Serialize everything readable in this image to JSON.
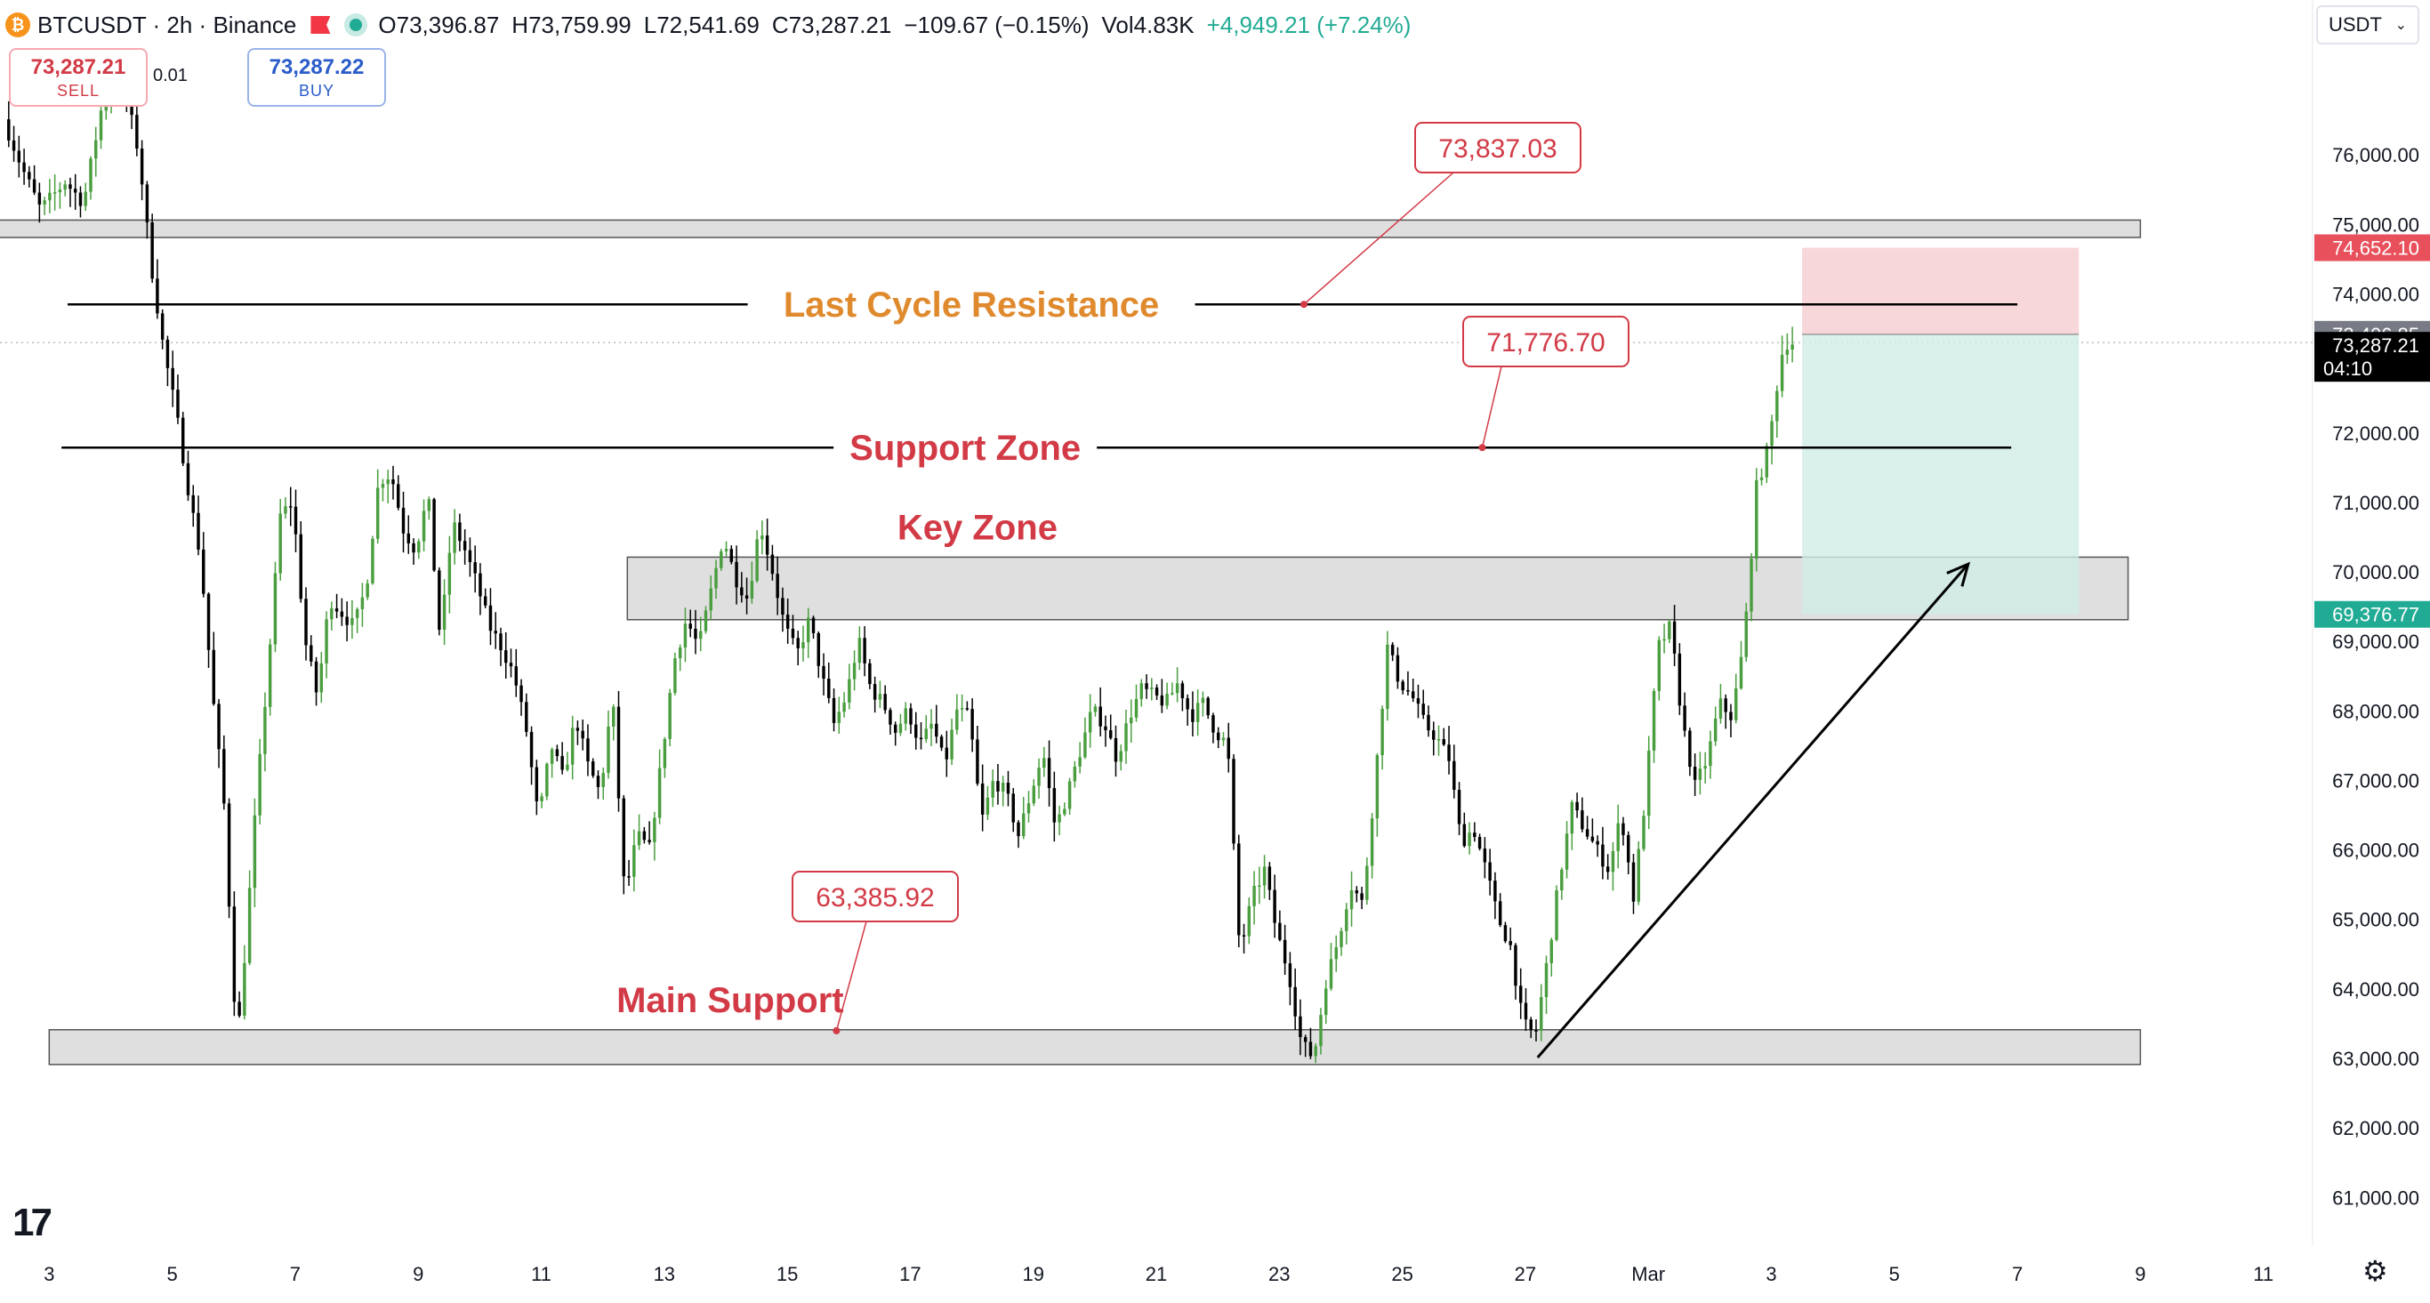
{
  "header": {
    "symbol": "BTCUSDT · 2h · Binance",
    "coin_icon": "bitcoin-icon",
    "open": "O73,396.87",
    "high": "H73,759.99",
    "low": "L72,541.69",
    "close": "C73,287.21",
    "change": "−109.67 (−0.15%)",
    "volume": "Vol4.83K",
    "vol_change": "+4,949.21 (+7.24%)"
  },
  "trade": {
    "sell_price": "73,287.21",
    "sell_label": "SELL",
    "spread": "0.01",
    "buy_price": "73,287.22",
    "buy_label": "BUY"
  },
  "currency": "USDT",
  "colors": {
    "up": "#4a9e3f",
    "down": "#000000",
    "zone_fill": "#d9d9d9",
    "label_red": "#d23a46",
    "label_orange": "#e08a2e",
    "stop_fill": "#f7d3d6",
    "target_fill": "#cfece6",
    "stop_label": "#e8505c",
    "target_label": "#22ab94"
  },
  "chart_data": {
    "type": "candlestick",
    "y_axis": {
      "min": 60300,
      "max": 77500,
      "ticks": [
        76000,
        75000,
        74000,
        73000,
        72000,
        71000,
        70000,
        69000,
        68000,
        67000,
        66000,
        65000,
        64000,
        63000,
        62000,
        61000
      ],
      "tick_labels": [
        "76,000.00",
        "75,000.00",
        "74,000.00",
        "73,000.00",
        "72,000.00",
        "71,000.00",
        "70,000.00",
        "69,000.00",
        "68,000.00",
        "67,000.00",
        "66,000.00",
        "65,000.00",
        "64,000.00",
        "63,000.00",
        "62,000.00",
        "61,000.00"
      ]
    },
    "x_axis": {
      "ticks": [
        {
          "label": "3",
          "day": 3
        },
        {
          "label": "5",
          "day": 5
        },
        {
          "label": "7",
          "day": 7
        },
        {
          "label": "9",
          "day": 9
        },
        {
          "label": "11",
          "day": 11
        },
        {
          "label": "13",
          "day": 13
        },
        {
          "label": "15",
          "day": 15
        },
        {
          "label": "17",
          "day": 17
        },
        {
          "label": "19",
          "day": 19
        },
        {
          "label": "21",
          "day": 21
        },
        {
          "label": "23",
          "day": 23
        },
        {
          "label": "25",
          "day": 25
        },
        {
          "label": "27",
          "day": 27
        },
        {
          "label": "Mar",
          "day": 29
        },
        {
          "label": "3",
          "day": 31
        },
        {
          "label": "5",
          "day": 33
        },
        {
          "label": "7",
          "day": 35
        },
        {
          "label": "9",
          "day": 37
        },
        {
          "label": "11",
          "day": 39
        }
      ]
    },
    "price_path": [
      [
        2.3,
        76500
      ],
      [
        2.6,
        75800
      ],
      [
        2.9,
        75200
      ],
      [
        3.3,
        75600
      ],
      [
        3.6,
        75300
      ],
      [
        3.9,
        76700
      ],
      [
        4.2,
        77200
      ],
      [
        4.5,
        76000
      ],
      [
        4.7,
        74400
      ],
      [
        4.9,
        73200
      ],
      [
        5.1,
        72300
      ],
      [
        5.3,
        71200
      ],
      [
        5.5,
        70200
      ],
      [
        5.7,
        68200
      ],
      [
        5.9,
        66500
      ],
      [
        6.0,
        64600
      ],
      [
        6.1,
        63200
      ],
      [
        6.25,
        64800
      ],
      [
        6.4,
        66600
      ],
      [
        6.6,
        68600
      ],
      [
        6.8,
        70800
      ],
      [
        7.0,
        71000
      ],
      [
        7.2,
        69000
      ],
      [
        7.4,
        68200
      ],
      [
        7.6,
        69600
      ],
      [
        7.8,
        69400
      ],
      [
        8.0,
        69200
      ],
      [
        8.2,
        69800
      ],
      [
        8.4,
        71300
      ],
      [
        8.6,
        71400
      ],
      [
        8.8,
        70600
      ],
      [
        9.0,
        70300
      ],
      [
        9.2,
        71100
      ],
      [
        9.4,
        69000
      ],
      [
        9.6,
        70700
      ],
      [
        9.8,
        70300
      ],
      [
        10.0,
        69800
      ],
      [
        10.2,
        69200
      ],
      [
        10.4,
        68900
      ],
      [
        10.6,
        68500
      ],
      [
        10.8,
        67700
      ],
      [
        11.0,
        66400
      ],
      [
        11.2,
        67500
      ],
      [
        11.4,
        67000
      ],
      [
        11.6,
        67900
      ],
      [
        11.8,
        67200
      ],
      [
        12.0,
        66800
      ],
      [
        12.2,
        68200
      ],
      [
        12.4,
        65300
      ],
      [
        12.6,
        66200
      ],
      [
        12.8,
        66000
      ],
      [
        13.0,
        67300
      ],
      [
        13.2,
        68700
      ],
      [
        13.4,
        69300
      ],
      [
        13.6,
        68900
      ],
      [
        13.8,
        69700
      ],
      [
        14.0,
        70500
      ],
      [
        14.2,
        69900
      ],
      [
        14.4,
        69600
      ],
      [
        14.6,
        70700
      ],
      [
        14.8,
        70000
      ],
      [
        15.0,
        69200
      ],
      [
        15.2,
        68800
      ],
      [
        15.4,
        69300
      ],
      [
        15.6,
        68500
      ],
      [
        15.8,
        67800
      ],
      [
        16.0,
        68200
      ],
      [
        16.2,
        69000
      ],
      [
        16.4,
        68300
      ],
      [
        16.6,
        68100
      ],
      [
        16.8,
        67700
      ],
      [
        17.0,
        68000
      ],
      [
        17.2,
        67500
      ],
      [
        17.4,
        67800
      ],
      [
        17.6,
        67200
      ],
      [
        17.8,
        68000
      ],
      [
        18.0,
        67900
      ],
      [
        18.2,
        66400
      ],
      [
        18.4,
        67000
      ],
      [
        18.6,
        66800
      ],
      [
        18.8,
        66200
      ],
      [
        19.0,
        66800
      ],
      [
        19.2,
        67400
      ],
      [
        19.4,
        66300
      ],
      [
        19.6,
        66800
      ],
      [
        19.8,
        67400
      ],
      [
        20.0,
        68000
      ],
      [
        20.2,
        67800
      ],
      [
        20.4,
        67300
      ],
      [
        20.6,
        67900
      ],
      [
        20.8,
        68300
      ],
      [
        21.0,
        68200
      ],
      [
        21.2,
        68100
      ],
      [
        21.4,
        68400
      ],
      [
        21.6,
        67900
      ],
      [
        21.8,
        68100
      ],
      [
        22.0,
        67700
      ],
      [
        22.2,
        67500
      ],
      [
        22.4,
        64500
      ],
      [
        22.6,
        65300
      ],
      [
        22.8,
        65700
      ],
      [
        23.0,
        64800
      ],
      [
        23.2,
        64200
      ],
      [
        23.4,
        63200
      ],
      [
        23.6,
        63000
      ],
      [
        23.8,
        64100
      ],
      [
        24.0,
        64700
      ],
      [
        24.2,
        65500
      ],
      [
        24.4,
        65200
      ],
      [
        24.6,
        67000
      ],
      [
        24.8,
        68900
      ],
      [
        25.0,
        68400
      ],
      [
        25.2,
        68200
      ],
      [
        25.4,
        67800
      ],
      [
        25.6,
        67600
      ],
      [
        25.8,
        67300
      ],
      [
        26.0,
        66100
      ],
      [
        26.2,
        66300
      ],
      [
        26.4,
        65700
      ],
      [
        26.6,
        65000
      ],
      [
        26.8,
        64600
      ],
      [
        27.0,
        63500
      ],
      [
        27.2,
        63300
      ],
      [
        27.4,
        64400
      ],
      [
        27.6,
        65600
      ],
      [
        27.8,
        66600
      ],
      [
        28.0,
        66300
      ],
      [
        28.2,
        66000
      ],
      [
        28.4,
        65700
      ],
      [
        28.6,
        66500
      ],
      [
        28.8,
        65300
      ],
      [
        29.0,
        66800
      ],
      [
        29.2,
        68900
      ],
      [
        29.4,
        69200
      ],
      [
        29.6,
        67800
      ],
      [
        29.8,
        66900
      ],
      [
        30.0,
        67300
      ],
      [
        30.2,
        68100
      ],
      [
        30.4,
        67900
      ],
      [
        30.6,
        69000
      ],
      [
        30.8,
        71200
      ],
      [
        31.0,
        71800
      ],
      [
        31.2,
        73100
      ],
      [
        31.3,
        73287.21
      ]
    ],
    "horizontal_lines": [
      {
        "label": "Last Cycle Resistance",
        "price": 73837.03,
        "x_start_day": 3.3,
        "x_end_day": 35.0,
        "color": "label_orange"
      },
      {
        "label": "Support Zone",
        "price": 71776.7,
        "x_start_day": 3.2,
        "x_end_day": 34.9,
        "color": "label_red"
      }
    ],
    "zones": [
      {
        "label": "",
        "price_low": 74800,
        "price_high": 75050,
        "x_start_day": 1.0,
        "x_end_day": 37.0
      },
      {
        "label": "Key Zone",
        "price_low": 69300,
        "price_high": 70200,
        "x_start_day": 12.4,
        "x_end_day": 36.8
      },
      {
        "label": "Main Support",
        "price_low": 62900,
        "price_high": 63400,
        "x_start_day": 3.0,
        "x_end_day": 37.0
      }
    ],
    "callouts": [
      {
        "text": "73,837.03",
        "price": 73837.03,
        "anchor_day": 23.4
      },
      {
        "text": "71,776.70",
        "price": 71776.7,
        "anchor_day": 26.3
      },
      {
        "text": "63,385.92",
        "price": 63385.92,
        "anchor_day": 15.8
      }
    ],
    "trendline": {
      "start": {
        "day": 27.2,
        "price": 63000
      },
      "end": {
        "day": 34.2,
        "price": 70100
      }
    },
    "position": {
      "entry": 73406.85,
      "stop": 74652.1,
      "target": 69376.77,
      "start_day": 31.5,
      "end_day": 36.0
    },
    "price_labels": [
      {
        "text": "74,652.10",
        "price": 74652.1,
        "style": "stop"
      },
      {
        "text": "73,406.85",
        "price": 73406.85,
        "style": "entry"
      },
      {
        "text": "73,287.21",
        "price": 73287.21,
        "style": "last",
        "sub": "04:10"
      },
      {
        "text": "69,376.77",
        "price": 69376.77,
        "style": "target"
      }
    ]
  }
}
